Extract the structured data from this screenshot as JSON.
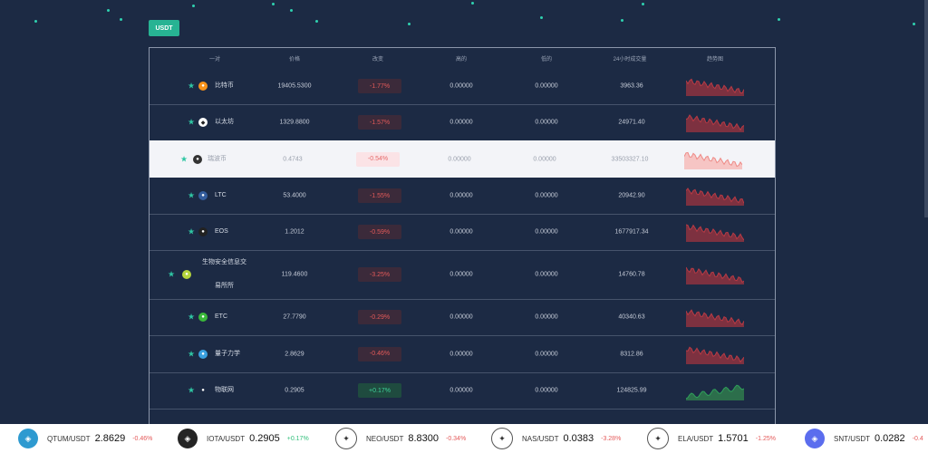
{
  "tab": {
    "label": "USDT"
  },
  "headers": [
    "一对",
    "价格",
    "改变",
    "高的",
    "低的",
    "24小时成交量",
    "趋势图"
  ],
  "rows": [
    {
      "name": "比特币",
      "price": "19405.5300",
      "change": "-1.77%",
      "high": "0.00000",
      "low": "0.00000",
      "volume": "3963.36",
      "trend": "down",
      "icon_color": "#f7931a",
      "icon": "bitcoin-icon"
    },
    {
      "name": "以太坊",
      "price": "1329.8800",
      "change": "-1.57%",
      "high": "0.00000",
      "low": "0.00000",
      "volume": "24971.40",
      "trend": "down",
      "icon_color": "#ffffff",
      "icon": "ethereum-icon"
    },
    {
      "name": "瑞波币",
      "price": "0.4743",
      "change": "-0.54%",
      "high": "0.00000",
      "low": "0.00000",
      "volume": "33503327.10",
      "trend": "down",
      "icon_color": "#333333",
      "icon": "ripple-icon"
    },
    {
      "name": "LTC",
      "price": "53.4000",
      "change": "-1.55%",
      "high": "0.00000",
      "low": "0.00000",
      "volume": "20942.90",
      "trend": "down",
      "icon_color": "#345d9d",
      "icon": "litecoin-icon"
    },
    {
      "name": "EOS",
      "price": "1.2012",
      "change": "-0.59%",
      "high": "0.00000",
      "low": "0.00000",
      "volume": "1677917.34",
      "trend": "down",
      "icon_color": "#222222",
      "icon": "eos-icon"
    },
    {
      "name": "生物安全信息交\n易所所",
      "name1": "生物安全信息交",
      "name2": "易所所",
      "price": "119.4600",
      "change": "-3.25%",
      "high": "0.00000",
      "low": "0.00000",
      "volume": "14760.78",
      "trend": "down",
      "icon_color": "#b5d43c",
      "icon": "bio-icon"
    },
    {
      "name": "ETC",
      "price": "27.7790",
      "change": "-0.29%",
      "high": "0.00000",
      "low": "0.00000",
      "volume": "40340.63",
      "trend": "down",
      "icon_color": "#3ab83a",
      "icon": "etc-icon"
    },
    {
      "name": "量子力学",
      "price": "2.8629",
      "change": "-0.46%",
      "high": "0.00000",
      "low": "0.00000",
      "volume": "8312.86",
      "trend": "down",
      "icon_color": "#3aa0e0",
      "icon": "qtum-icon"
    },
    {
      "name": "物联网",
      "price": "0.2905",
      "change": "+0.17%",
      "high": "0.00000",
      "low": "0.00000",
      "volume": "124825.99",
      "trend": "up",
      "icon_color": "#1c2a44",
      "icon": "iota-icon"
    }
  ],
  "ticker": [
    {
      "pair": "QTUM/USDT",
      "price": "2.8629",
      "change": "-0.46%",
      "dir": "neg",
      "icon": "qtum-icon",
      "icon_color": "#2e9ad0"
    },
    {
      "pair": "IOTA/USDT",
      "price": "0.2905",
      "change": "+0.17%",
      "dir": "pos",
      "icon": "iota-icon",
      "icon_color": "#242424"
    },
    {
      "pair": "NEO/USDT",
      "price": "8.8300",
      "change": "-0.34%",
      "dir": "neg",
      "icon": "neo-icon",
      "icon_color": "#ffffff"
    },
    {
      "pair": "NAS/USDT",
      "price": "0.0383",
      "change": "-3.28%",
      "dir": "neg",
      "icon": "nas-icon",
      "icon_color": "#ffffff"
    },
    {
      "pair": "ELA/USDT",
      "price": "1.5701",
      "change": "-1.25%",
      "dir": "neg",
      "icon": "ela-icon",
      "icon_color": "#ffffff"
    },
    {
      "pair": "SNT/USDT",
      "price": "0.0282",
      "change": "-0.4",
      "dir": "neg",
      "icon": "snt-icon",
      "icon_color": "#5b6dee"
    }
  ],
  "colors": {
    "accent": "#27b393",
    "negative": "#e45a5a",
    "positive": "#3ed39a",
    "background": "#1c2a44"
  }
}
